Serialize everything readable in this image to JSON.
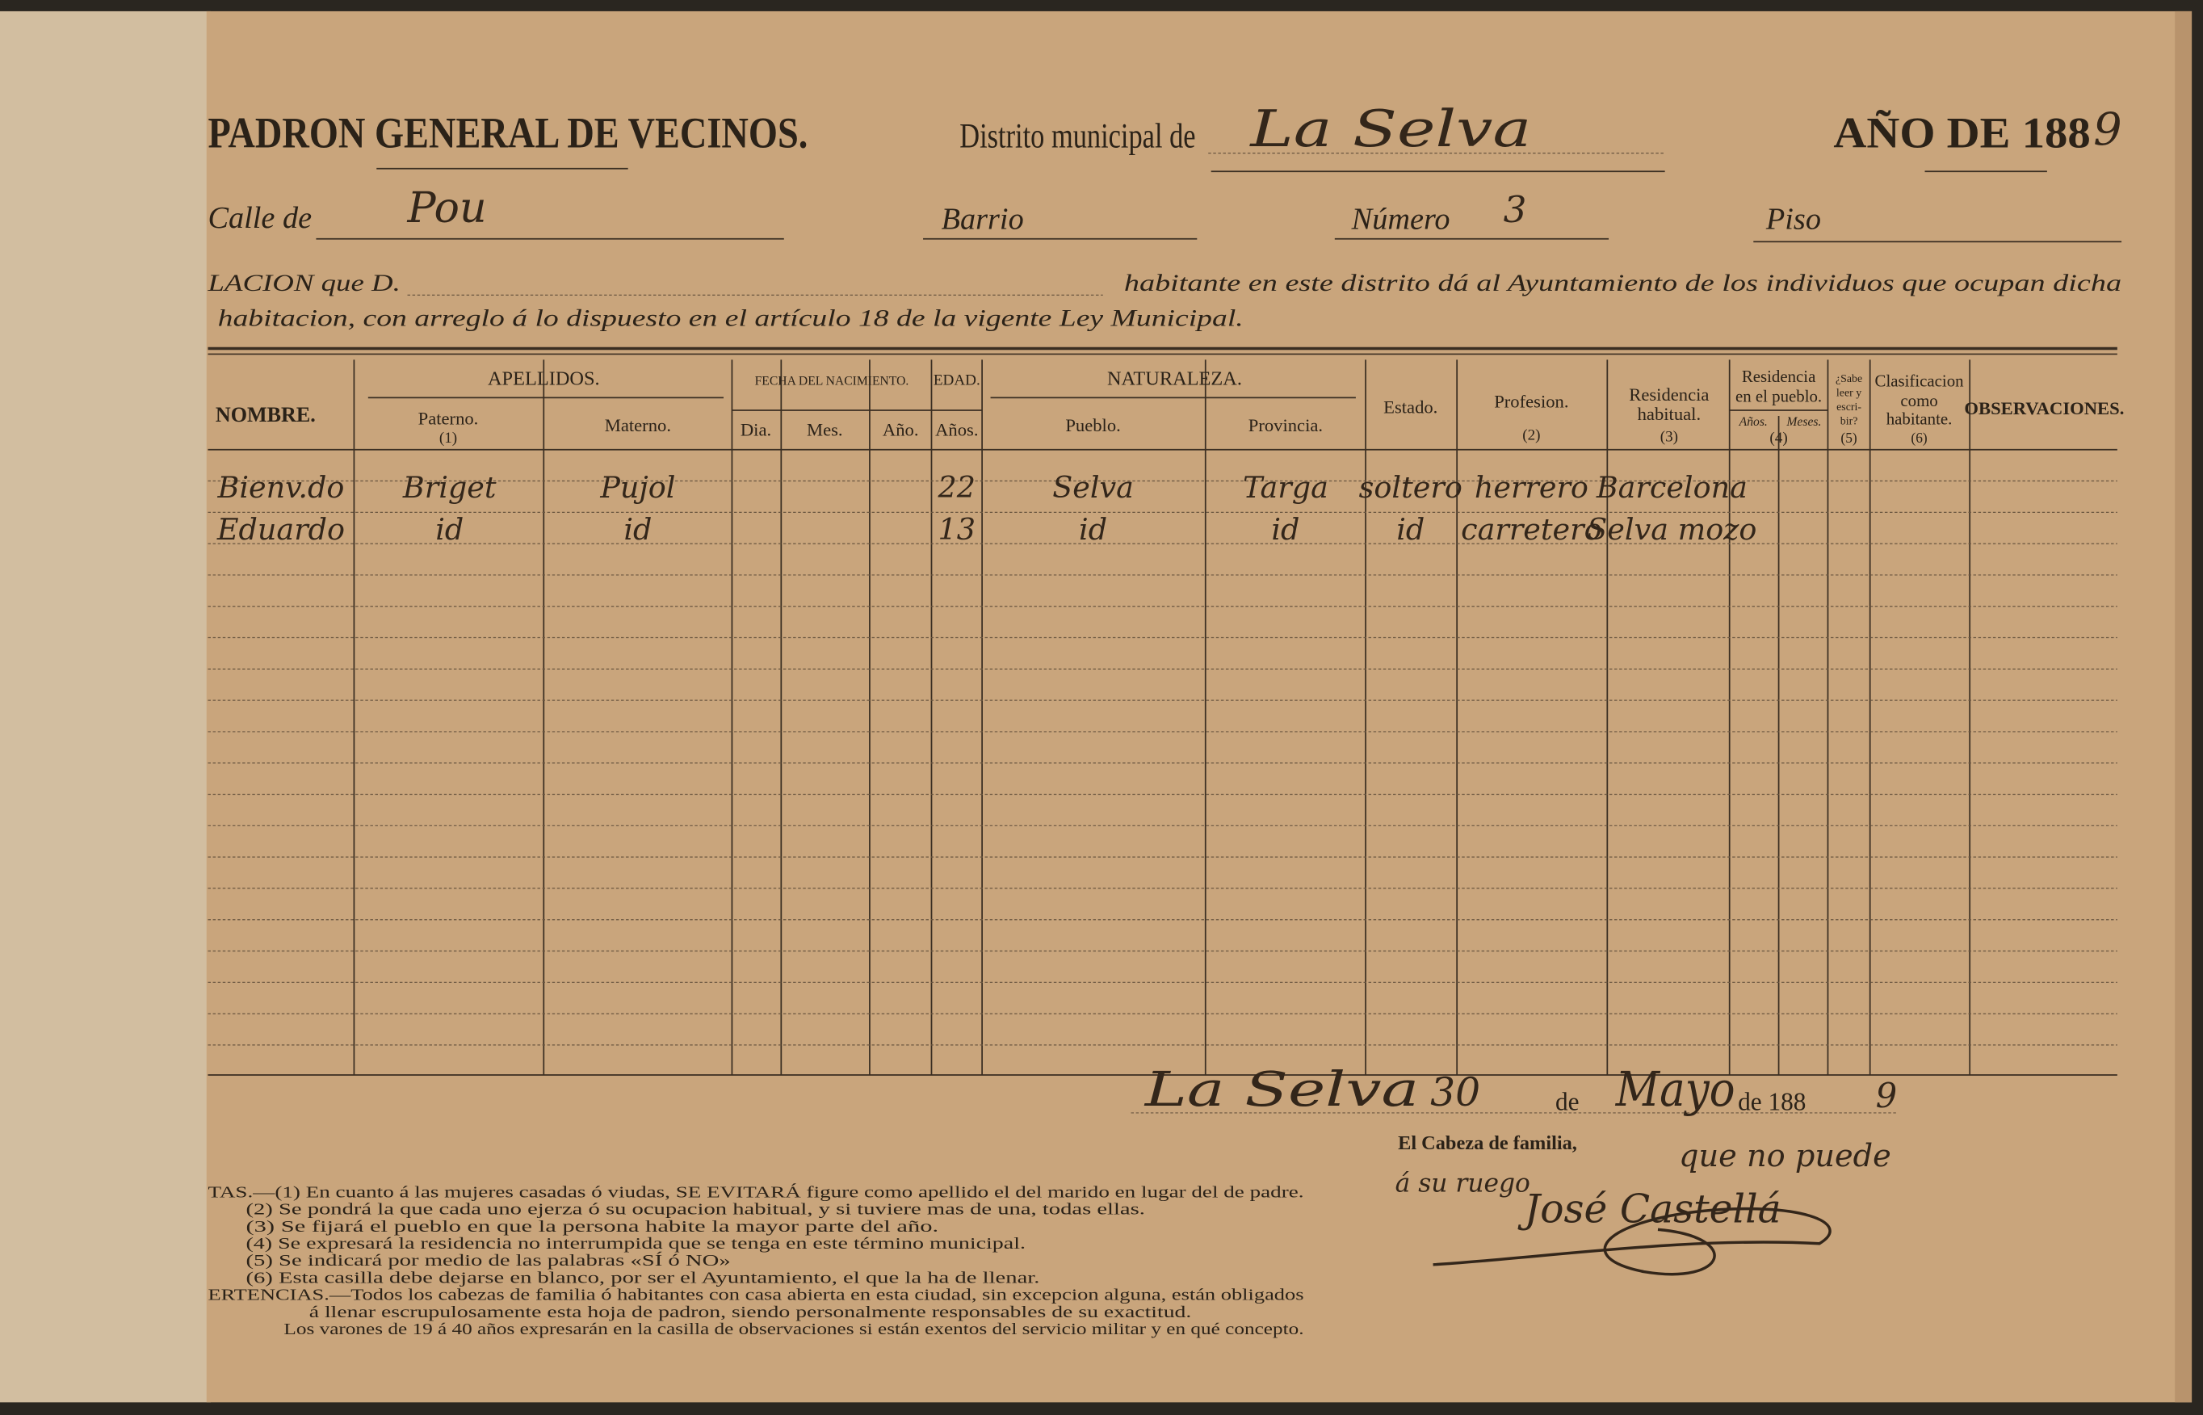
{
  "header": {
    "title": "PADRON GENERAL DE VECINOS.",
    "district_label": "Distrito municipal de",
    "district": "La Selva",
    "year_label": "AÑO DE 188",
    "year_digit": "9"
  },
  "address": {
    "street_label": "Calle de",
    "street": "Pou",
    "barrio_label": "Barrio",
    "numero_label": "Número",
    "numero": "3",
    "piso_label": "Piso"
  },
  "relation": {
    "line1_start": "LACION que D.",
    "line1_end": "habitante en este distrito dá al Ayuntamiento de los individuos que ocupan dicha",
    "line2": "habitacion, con arreglo á lo dispuesto en el artículo 18 de la vigente Ley Municipal."
  },
  "table": {
    "headers": {
      "nombre": "NOMBRE.",
      "apellidos": "APELLIDOS.",
      "paterno": "Paterno.",
      "paterno_note": "(1)",
      "materno": "Materno.",
      "fecha": "FECHA DEL NACIMIENTO.",
      "dia": "Dia.",
      "mes": "Mes.",
      "ano": "Año.",
      "edad": "EDAD.",
      "anos": "Años.",
      "naturaleza": "NATURALEZA.",
      "pueblo": "Pueblo.",
      "provincia": "Provincia.",
      "estado": "Estado.",
      "profesion": "Profesion.",
      "profesion_note": "(2)",
      "residencia": [
        "Residencia",
        "habitual."
      ],
      "residencia_note": "(3)",
      "residencia_pueblo": [
        "Residencia",
        "en el pueblo."
      ],
      "res_anos": "Años.",
      "res_meses": "Meses.",
      "residencia_pueblo_note": "(4)",
      "sabe": [
        "¿Sabe",
        "leer y",
        "escri-",
        "bir?"
      ],
      "sabe_note": "(5)",
      "clasificacion": [
        "Clasificacion",
        "como",
        "habitante."
      ],
      "clasificacion_note": "(6)",
      "observaciones": "OBSERVACIONES."
    },
    "rows": [
      {
        "nombre": "Bienv.do",
        "paterno": "Briget",
        "materno": "Pujol",
        "edad": "22",
        "pueblo": "Selva",
        "provincia": "Targa",
        "estado": "soltero",
        "profesion": "herrero",
        "residencia": "Barcelona"
      },
      {
        "nombre": "Eduardo",
        "paterno": "id",
        "materno": "id",
        "edad": "13",
        "pueblo": "id",
        "provincia": "id",
        "estado": "id",
        "profesion": "carretero",
        "residencia": "Selva mozo"
      }
    ]
  },
  "footer": {
    "place": "La Selva",
    "day": "30",
    "de1": "de",
    "month": "Mayo",
    "de2": "de 188",
    "year_digit": "9",
    "signature_label": "El Cabeza de familia,",
    "signature_note": "que no puede",
    "signature_note2": "á su ruego",
    "signer": "José Castellá"
  },
  "notes": [
    "TAS.—(1)  En cuanto á las mujeres casadas ó viudas, SE EVITARÁ figure como apellido el del marido en lugar del de padre.",
    "(2)  Se pondrá la que cada uno ejerza ó su ocupacion habitual, y si tuviere mas de una, todas ellas.",
    "(3)  Se fijará el pueblo en que la persona habite la mayor parte del año.",
    "(4)  Se expresará la residencia no interrumpida que se tenga en este término municipal.",
    "(5)  Se indicará por medio de las palabras «SÍ ó NO»",
    "(6)  Esta casilla debe dejarse en blanco, por ser el Ayuntamiento, el que la ha de llenar.",
    "ERTENCIAS.—Todos los cabezas de familia ó habitantes con casa abierta en esta ciudad, sin excepcion alguna, están obligados",
    "á llenar escrupulosamente esta hoja de padron, siendo personalmente responsables de su exactitud.",
    "Los varones de 19 á 40 años expresarán en la casilla de observaciones si están exentos del servicio militar y en qué concepto."
  ]
}
